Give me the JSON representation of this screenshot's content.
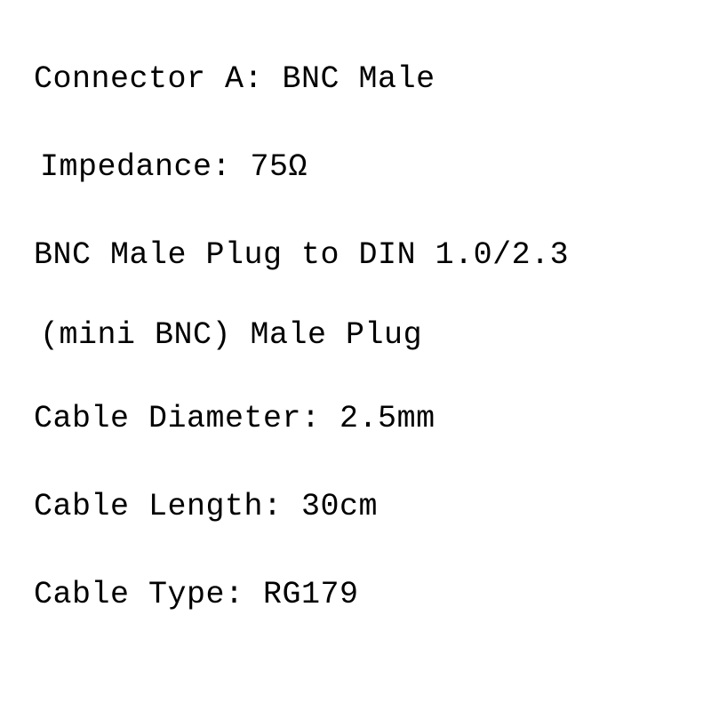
{
  "text_color": "#000000",
  "background_color": "#ffffff",
  "font_family": "Courier New",
  "font_size": 35,
  "lines": {
    "connector_a": "Connector A: BNC Male",
    "impedance": "Impedance: 75Ω",
    "description1": "BNC Male Plug to DIN 1.0/2.3",
    "description2": "(mini BNC) Male Plug",
    "cable_diameter": "Cable Diameter: 2.5mm",
    "cable_length": "Cable Length: 30cm",
    "cable_type": "Cable Type: RG179"
  }
}
